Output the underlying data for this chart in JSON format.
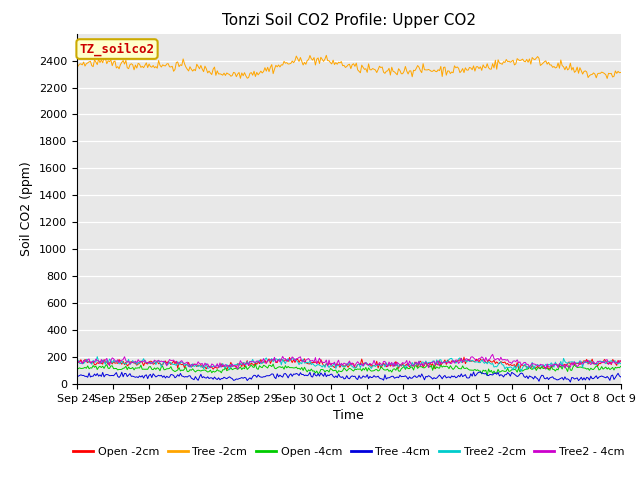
{
  "title": "Tonzi Soil CO2 Profile: Upper CO2",
  "xlabel": "Time",
  "ylabel": "Soil CO2 (ppm)",
  "ylim": [
    0,
    2600
  ],
  "yticks": [
    0,
    200,
    400,
    600,
    800,
    1000,
    1200,
    1400,
    1600,
    1800,
    2000,
    2200,
    2400
  ],
  "background_color": "#e8e8e8",
  "series": [
    {
      "name": "Open -2cm",
      "color": "#ff0000",
      "mean": 150,
      "amp": 18,
      "noise": 12,
      "freq_mult": 3.2
    },
    {
      "name": "Tree -2cm",
      "color": "#ffa500",
      "mean": 2350,
      "amp": 40,
      "noise": 18,
      "freq_mult": 2.8
    },
    {
      "name": "Open -4cm",
      "color": "#00cc00",
      "mean": 110,
      "amp": 15,
      "noise": 10,
      "freq_mult": 3.5
    },
    {
      "name": "Tree -4cm",
      "color": "#0000dd",
      "mean": 55,
      "amp": 12,
      "noise": 10,
      "freq_mult": 3.0
    },
    {
      "name": "Tree2 -2cm",
      "color": "#00cccc",
      "mean": 150,
      "amp": 18,
      "noise": 12,
      "freq_mult": 3.3
    },
    {
      "name": "Tree2 - 4cm",
      "color": "#cc00cc",
      "mean": 160,
      "amp": 18,
      "noise": 12,
      "freq_mult": 3.1
    }
  ],
  "n_points": 400,
  "xtick_labels": [
    "Sep 24",
    "Sep 25",
    "Sep 26",
    "Sep 27",
    "Sep 28",
    "Sep 29",
    "Sep 30",
    "Oct 1",
    "Oct 2",
    "Oct 3",
    "Oct 4",
    "Oct 5",
    "Oct 6",
    "Oct 7",
    "Oct 8",
    "Oct 9"
  ],
  "annotation_text": "TZ_soilco2",
  "annotation_color": "#cc0000",
  "annotation_bg": "#ffffcc",
  "annotation_border": "#ccaa00",
  "title_fontsize": 11,
  "label_fontsize": 9,
  "tick_fontsize": 8,
  "legend_fontsize": 8,
  "fig_width": 6.4,
  "fig_height": 4.8,
  "dpi": 100
}
